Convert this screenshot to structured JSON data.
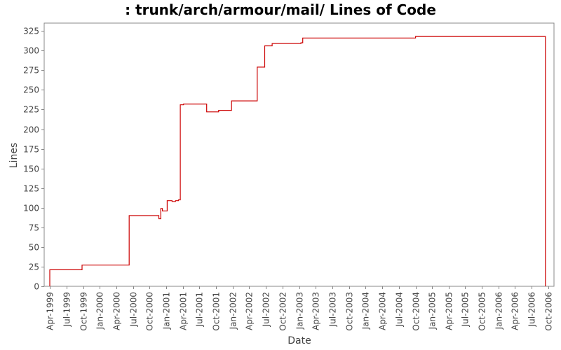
{
  "chart_data": {
    "type": "line",
    "title": ": trunk/arch/armour/mail/ Lines of Code",
    "xlabel": "Date",
    "ylabel": "Lines",
    "ylim": [
      0,
      335
    ],
    "xlim": [
      "1999-03-01",
      "2006-11-01"
    ],
    "y_ticks": [
      0,
      25,
      50,
      75,
      100,
      125,
      150,
      175,
      200,
      225,
      250,
      275,
      300,
      325
    ],
    "x_ticks": [
      {
        "label": "Apr-1999",
        "date": "1999-04-01"
      },
      {
        "label": "Jul-1999",
        "date": "1999-07-01"
      },
      {
        "label": "Oct-1999",
        "date": "1999-10-01"
      },
      {
        "label": "Jan-2000",
        "date": "2000-01-01"
      },
      {
        "label": "Apr-2000",
        "date": "2000-04-01"
      },
      {
        "label": "Jul-2000",
        "date": "2000-07-01"
      },
      {
        "label": "Oct-2000",
        "date": "2000-10-01"
      },
      {
        "label": "Jan-2001",
        "date": "2001-01-01"
      },
      {
        "label": "Apr-2001",
        "date": "2001-04-01"
      },
      {
        "label": "Jul-2001",
        "date": "2001-07-01"
      },
      {
        "label": "Oct-2001",
        "date": "2001-10-01"
      },
      {
        "label": "Jan-2002",
        "date": "2002-01-01"
      },
      {
        "label": "Apr-2002",
        "date": "2002-04-01"
      },
      {
        "label": "Jul-2002",
        "date": "2002-07-01"
      },
      {
        "label": "Oct-2002",
        "date": "2002-10-01"
      },
      {
        "label": "Jan-2003",
        "date": "2003-01-01"
      },
      {
        "label": "Apr-2003",
        "date": "2003-04-01"
      },
      {
        "label": "Jul-2003",
        "date": "2003-07-01"
      },
      {
        "label": "Oct-2003",
        "date": "2003-10-01"
      },
      {
        "label": "Jan-2004",
        "date": "2004-01-01"
      },
      {
        "label": "Apr-2004",
        "date": "2004-04-01"
      },
      {
        "label": "Jul-2004",
        "date": "2004-07-01"
      },
      {
        "label": "Oct-2004",
        "date": "2004-10-01"
      },
      {
        "label": "Jan-2005",
        "date": "2005-01-01"
      },
      {
        "label": "Apr-2005",
        "date": "2005-04-01"
      },
      {
        "label": "Jul-2005",
        "date": "2005-07-01"
      },
      {
        "label": "Oct-2005",
        "date": "2005-10-01"
      },
      {
        "label": "Jan-2006",
        "date": "2006-01-01"
      },
      {
        "label": "Apr-2006",
        "date": "2006-04-01"
      },
      {
        "label": "Jul-2006",
        "date": "2006-07-01"
      },
      {
        "label": "Oct-2006",
        "date": "2006-10-01"
      }
    ],
    "step": true,
    "series": [
      {
        "color": "#cc0000",
        "points": [
          [
            "1999-04-01",
            0
          ],
          [
            "1999-04-01",
            21
          ],
          [
            "1999-09-25",
            21
          ],
          [
            "1999-09-25",
            27
          ],
          [
            "2000-06-10",
            27
          ],
          [
            "2000-06-10",
            90
          ],
          [
            "2000-11-20",
            90
          ],
          [
            "2000-11-20",
            86
          ],
          [
            "2000-12-01",
            86
          ],
          [
            "2000-12-01",
            99
          ],
          [
            "2000-12-10",
            99
          ],
          [
            "2000-12-10",
            96
          ],
          [
            "2001-01-05",
            96
          ],
          [
            "2001-01-05",
            109
          ],
          [
            "2001-02-01",
            109
          ],
          [
            "2001-02-01",
            108
          ],
          [
            "2001-02-20",
            108
          ],
          [
            "2001-02-20",
            109
          ],
          [
            "2001-03-08",
            109
          ],
          [
            "2001-03-08",
            110
          ],
          [
            "2001-03-18",
            110
          ],
          [
            "2001-03-18",
            231
          ],
          [
            "2001-04-05",
            231
          ],
          [
            "2001-04-05",
            232
          ],
          [
            "2001-08-10",
            232
          ],
          [
            "2001-08-10",
            222
          ],
          [
            "2001-10-15",
            222
          ],
          [
            "2001-10-15",
            224
          ],
          [
            "2001-12-25",
            224
          ],
          [
            "2001-12-25",
            236
          ],
          [
            "2002-05-15",
            236
          ],
          [
            "2002-05-15",
            279
          ],
          [
            "2002-06-25",
            279
          ],
          [
            "2002-06-25",
            306
          ],
          [
            "2002-08-05",
            306
          ],
          [
            "2002-08-05",
            309
          ],
          [
            "2003-01-10",
            309
          ],
          [
            "2003-01-10",
            310
          ],
          [
            "2003-01-20",
            310
          ],
          [
            "2003-01-20",
            316
          ],
          [
            "2004-10-01",
            316
          ],
          [
            "2004-10-01",
            318
          ],
          [
            "2006-09-15",
            318
          ],
          [
            "2006-09-15",
            0
          ]
        ]
      }
    ]
  }
}
